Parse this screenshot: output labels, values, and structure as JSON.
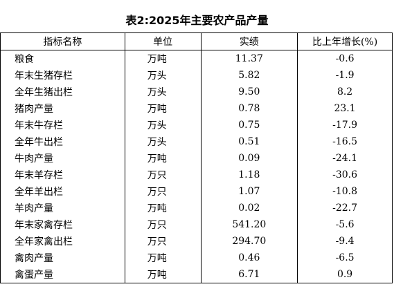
{
  "title": "表2:2025年主要农产品产量",
  "table": {
    "header": [
      "指标名称",
      "单位",
      "实绩",
      "比上年增长(%)"
    ],
    "rows": [
      [
        "粮食",
        "万吨",
        "11.37",
        "-0.6"
      ],
      [
        "年末生猪存栏",
        "万头",
        "5.82",
        "-1.9"
      ],
      [
        "全年生猪出栏",
        "万头",
        "9.50",
        "8.2"
      ],
      [
        "猪肉产量",
        "万吨",
        "0.78",
        "23.1"
      ],
      [
        "年末牛存栏",
        "万头",
        "0.75",
        "-17.9"
      ],
      [
        "全年牛出栏",
        "万头",
        "0.51",
        "-16.5"
      ],
      [
        "牛肉产量",
        "万吨",
        "0.09",
        "-24.1"
      ],
      [
        "年末羊存栏",
        "万只",
        "1.18",
        "-30.6"
      ],
      [
        "全年羊出栏",
        "万只",
        "1.07",
        "-10.8"
      ],
      [
        "羊肉产量",
        "万吨",
        "0.02",
        "-22.7"
      ],
      [
        "年末家禽存栏",
        "万只",
        "541.20",
        "-5.6"
      ],
      [
        "全年家禽出栏",
        "万只",
        "294.70",
        "-9.4"
      ],
      [
        "禽肉产量",
        "万吨",
        "0.46",
        "-6.5"
      ],
      [
        "禽蛋产量",
        "万吨",
        "6.71",
        "0.9"
      ]
    ]
  }
}
